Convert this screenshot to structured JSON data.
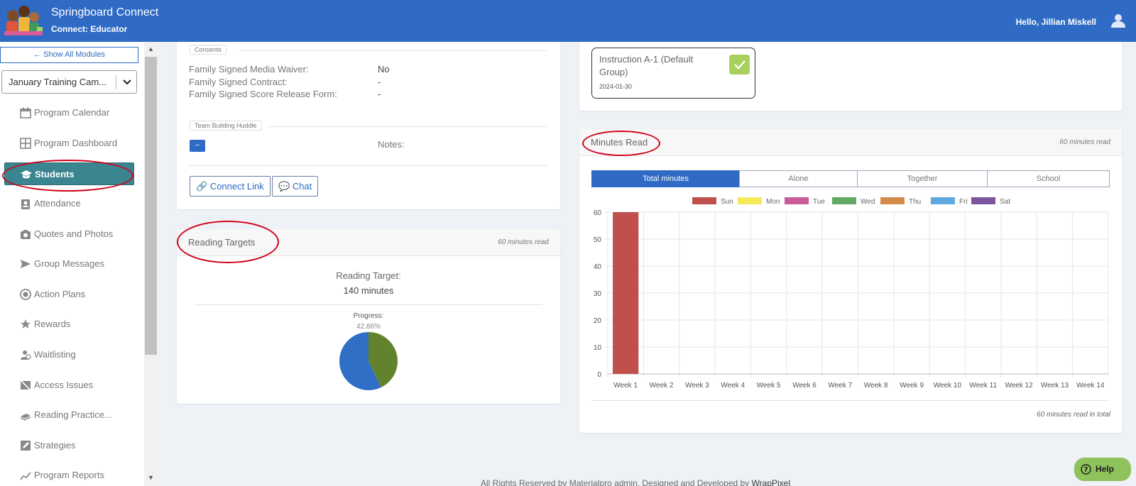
{
  "header": {
    "app_title": "Springboard Connect",
    "app_subtitle": "Connect: Educator",
    "greeting": "Hello, Jillian Miskell"
  },
  "sidebar": {
    "show_all_label": "Show All Modules",
    "camp_select_value": "January Training Cam...",
    "items": [
      {
        "label": "Program Calendar",
        "icon": "calendar-icon"
      },
      {
        "label": "Program Dashboard",
        "icon": "grid-icon"
      },
      {
        "label": "Students",
        "icon": "graduation-cap-icon",
        "active": true
      },
      {
        "label": "Attendance",
        "icon": "clipboard-user-icon"
      },
      {
        "label": "Quotes and Photos",
        "icon": "camera-icon"
      },
      {
        "label": "Group Messages",
        "icon": "send-icon"
      },
      {
        "label": "Action Plans",
        "icon": "target-icon"
      },
      {
        "label": "Rewards",
        "icon": "award-icon"
      },
      {
        "label": "Waitlisting",
        "icon": "user-clock-icon"
      },
      {
        "label": "Access Issues",
        "icon": "no-access-icon"
      },
      {
        "label": "Reading Practice...",
        "icon": "books-icon"
      },
      {
        "label": "Strategies",
        "icon": "edit-icon"
      },
      {
        "label": "Program Reports",
        "icon": "chart-line-icon"
      }
    ]
  },
  "consents": {
    "legend": "Consents",
    "rows": [
      {
        "label": "Family Signed Media Waiver:",
        "value": "No"
      },
      {
        "label": "Family Signed Contract:",
        "value": "-"
      },
      {
        "label": "Family Signed Score Release Form:",
        "value": "-"
      }
    ]
  },
  "huddle": {
    "legend": "Team Building Huddle",
    "toggle_label": "–",
    "notes_label": "Notes:"
  },
  "actions": {
    "connect_link_label": "Connect Link",
    "chat_label": "Chat"
  },
  "instruction": {
    "title": "Instruction A-1 (Default Group)",
    "date": "2024-01-30"
  },
  "reading_targets": {
    "title": "Reading Targets",
    "meta": "60 minutes read",
    "target_label": "Reading Target:",
    "target_value": "140 minutes",
    "progress_label": "Progress:",
    "progress_value": "42.86%",
    "progress_fraction": 0.4286,
    "colors": {
      "read": "#63822d",
      "remaining": "#2f6fc6"
    }
  },
  "minutes_read": {
    "title": "Minutes Read",
    "meta": "60 minutes read",
    "tabs": [
      "Total minutes",
      "Alone",
      "Together",
      "School"
    ],
    "active_tab": 0,
    "footer": "60 minutes read in total"
  },
  "chart_data": {
    "type": "bar",
    "stacked": true,
    "categories": [
      "Week 1",
      "Week 2",
      "Week 3",
      "Week 4",
      "Week 5",
      "Week 6",
      "Week 7",
      "Week 8",
      "Week 9",
      "Week 10",
      "Week 11",
      "Week 12",
      "Week 13",
      "Week 14"
    ],
    "series": [
      {
        "name": "Sun",
        "color": "#c0504d",
        "values": [
          60,
          0,
          0,
          0,
          0,
          0,
          0,
          0,
          0,
          0,
          0,
          0,
          0,
          0
        ]
      },
      {
        "name": "Mon",
        "color": "#f4ea5a",
        "values": [
          0,
          0,
          0,
          0,
          0,
          0,
          0,
          0,
          0,
          0,
          0,
          0,
          0,
          0
        ]
      },
      {
        "name": "Tue",
        "color": "#c95d9a",
        "values": [
          0,
          0,
          0,
          0,
          0,
          0,
          0,
          0,
          0,
          0,
          0,
          0,
          0,
          0
        ]
      },
      {
        "name": "Wed",
        "color": "#62a862",
        "values": [
          0,
          0,
          0,
          0,
          0,
          0,
          0,
          0,
          0,
          0,
          0,
          0,
          0,
          0
        ]
      },
      {
        "name": "Thu",
        "color": "#d38b4a",
        "values": [
          0,
          0,
          0,
          0,
          0,
          0,
          0,
          0,
          0,
          0,
          0,
          0,
          0,
          0
        ]
      },
      {
        "name": "Fri",
        "color": "#5eaae0",
        "values": [
          0,
          0,
          0,
          0,
          0,
          0,
          0,
          0,
          0,
          0,
          0,
          0,
          0,
          0
        ]
      },
      {
        "name": "Sat",
        "color": "#7b569e",
        "values": [
          0,
          0,
          0,
          0,
          0,
          0,
          0,
          0,
          0,
          0,
          0,
          0,
          0,
          0
        ]
      }
    ],
    "yticks": [
      0,
      10,
      20,
      30,
      40,
      50,
      60
    ],
    "ylim": [
      0,
      60
    ],
    "grid": true,
    "legend_position": "top"
  },
  "help": {
    "label": "Help"
  },
  "footer": {
    "text": "All Rights Reserved by Materialpro admin. Designed and Developed by ",
    "link": "WrapPixel"
  }
}
